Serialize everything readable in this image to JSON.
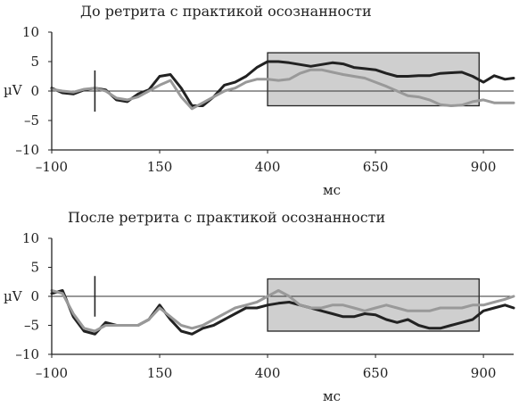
{
  "chart_data": [
    {
      "type": "line",
      "title": "До ретрита с практикой осознанности",
      "xlabel": "мс",
      "ylabel": "µV",
      "xlim": [
        -100,
        970
      ],
      "ylim": [
        -10,
        10
      ],
      "xticks": [
        -100,
        150,
        400,
        650,
        900
      ],
      "xtick_labels": [
        "–100",
        "150",
        "400",
        "650",
        "900"
      ],
      "yticks": [
        10,
        5,
        0,
        -5,
        -10
      ],
      "ytick_labels": [
        "10",
        "5",
        "0",
        "–5",
        "–10"
      ],
      "shaded_window": {
        "x": [
          400,
          890
        ],
        "y": [
          -2.5,
          6.5
        ]
      },
      "marker_x": 0,
      "series": [
        {
          "color": "#222222",
          "x": [
            -100,
            -75,
            -50,
            -25,
            0,
            25,
            50,
            75,
            100,
            125,
            150,
            175,
            200,
            225,
            250,
            275,
            300,
            325,
            350,
            375,
            400,
            425,
            450,
            475,
            500,
            525,
            550,
            575,
            600,
            625,
            650,
            675,
            700,
            725,
            750,
            775,
            800,
            825,
            850,
            875,
            900,
            925,
            950,
            970
          ],
          "y": [
            0.5,
            -0.3,
            -0.5,
            0.2,
            0.5,
            0.2,
            -1.5,
            -1.8,
            -0.5,
            0.2,
            2.5,
            2.8,
            0.5,
            -2.5,
            -2.5,
            -1,
            1,
            1.5,
            2.5,
            4,
            5,
            5,
            4.8,
            4.5,
            4.2,
            4.5,
            4.8,
            4.6,
            4,
            3.8,
            3.6,
            3,
            2.5,
            2.5,
            2.6,
            2.6,
            3,
            3.1,
            3.2,
            2.5,
            1.5,
            2.6,
            2,
            2.2
          ]
        },
        {
          "color": "#999999",
          "x": [
            -100,
            -75,
            -50,
            -25,
            0,
            25,
            50,
            75,
            100,
            125,
            150,
            175,
            200,
            225,
            250,
            275,
            300,
            325,
            350,
            375,
            400,
            425,
            450,
            475,
            500,
            525,
            550,
            575,
            600,
            625,
            650,
            675,
            700,
            725,
            750,
            775,
            800,
            825,
            850,
            875,
            900,
            925,
            950,
            970
          ],
          "y": [
            0.3,
            0,
            -0.2,
            0.3,
            0.5,
            0,
            -1.2,
            -1.5,
            -1,
            0,
            1,
            1.8,
            -1,
            -3,
            -2,
            -1,
            0,
            0.5,
            1.5,
            2,
            2,
            1.8,
            2,
            3,
            3.6,
            3.6,
            3.2,
            2.8,
            2.5,
            2.2,
            1.5,
            0.8,
            0,
            -0.8,
            -1,
            -1.5,
            -2.3,
            -2.5,
            -2.4,
            -1.8,
            -1.5,
            -2,
            -2,
            -2
          ]
        }
      ]
    },
    {
      "type": "line",
      "title": "После ретрита с практикой осознанности",
      "xlabel": "мс",
      "ylabel": "µV",
      "xlim": [
        -100,
        970
      ],
      "ylim": [
        -10,
        10
      ],
      "xticks": [
        -100,
        150,
        400,
        650,
        900
      ],
      "xtick_labels": [
        "–100",
        "150",
        "400",
        "650",
        "900"
      ],
      "yticks": [
        10,
        5,
        0,
        -5,
        -10
      ],
      "ytick_labels": [
        "10",
        "5",
        "0",
        "–5",
        "–10"
      ],
      "shaded_window": {
        "x": [
          400,
          890
        ],
        "y": [
          -6,
          3
        ]
      },
      "marker_x": 0,
      "series": [
        {
          "color": "#222222",
          "x": [
            -100,
            -75,
            -50,
            -25,
            0,
            25,
            50,
            75,
            100,
            125,
            150,
            175,
            200,
            225,
            250,
            275,
            300,
            325,
            350,
            375,
            400,
            425,
            450,
            475,
            500,
            525,
            550,
            575,
            600,
            625,
            650,
            675,
            700,
            725,
            750,
            775,
            800,
            825,
            850,
            875,
            900,
            925,
            950,
            970
          ],
          "y": [
            0.5,
            1,
            -3.5,
            -6,
            -6.5,
            -4.5,
            -5,
            -5,
            -5,
            -4,
            -1.5,
            -4,
            -6,
            -6.5,
            -5.5,
            -5,
            -4,
            -3,
            -2,
            -2,
            -1.5,
            -1.2,
            -1,
            -1.5,
            -2,
            -2.5,
            -3,
            -3.5,
            -3.5,
            -3,
            -3.2,
            -4,
            -4.5,
            -4,
            -5,
            -5.5,
            -5.5,
            -5,
            -4.5,
            -4,
            -2.5,
            -2,
            -1.5,
            -2
          ]
        },
        {
          "color": "#999999",
          "x": [
            -100,
            -75,
            -50,
            -25,
            0,
            25,
            50,
            75,
            100,
            125,
            150,
            175,
            200,
            225,
            250,
            275,
            300,
            325,
            350,
            375,
            400,
            425,
            450,
            475,
            500,
            525,
            550,
            575,
            600,
            625,
            650,
            675,
            700,
            725,
            750,
            775,
            800,
            825,
            850,
            875,
            900,
            925,
            950,
            970
          ],
          "y": [
            1,
            0.5,
            -3,
            -5.5,
            -6,
            -5,
            -5,
            -5,
            -5,
            -4,
            -2,
            -3.5,
            -5,
            -5.5,
            -5,
            -4,
            -3,
            -2,
            -1.5,
            -1,
            0,
            1,
            0,
            -1.5,
            -2,
            -2,
            -1.5,
            -1.5,
            -2,
            -2.5,
            -2,
            -1.5,
            -2,
            -2.5,
            -2.5,
            -2.5,
            -2,
            -2,
            -2,
            -1.5,
            -1.5,
            -1,
            -0.5,
            0
          ]
        }
      ]
    }
  ]
}
